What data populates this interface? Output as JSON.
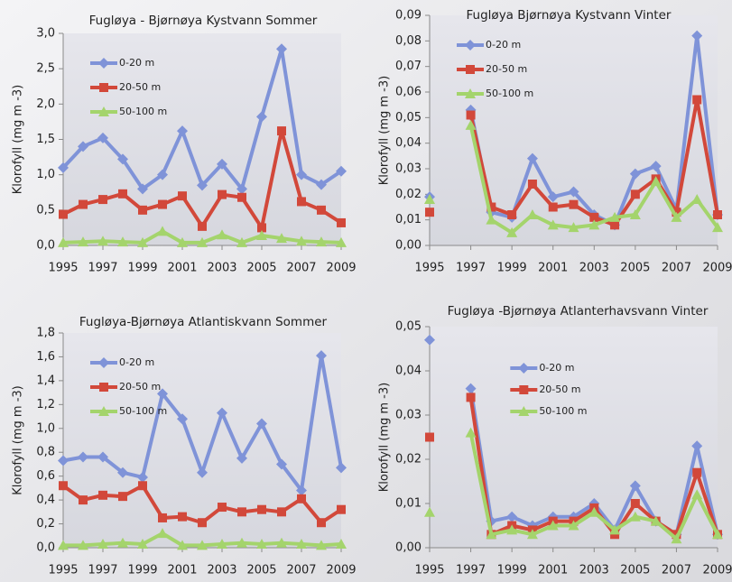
{
  "chart_data": [
    {
      "type": "line",
      "title": "Fugløya - Bjørnøya Kystvann Sommer",
      "y_label": "Klorofyll  (mg m -3)",
      "x": [
        1995,
        1996,
        1997,
        1998,
        1999,
        2000,
        2001,
        2002,
        2003,
        2004,
        2005,
        2006,
        2007,
        2008,
        2009
      ],
      "xlim": [
        1995,
        2009
      ],
      "xticks": [
        1995,
        1997,
        1999,
        2001,
        2003,
        2005,
        2007,
        2009
      ],
      "ylim": [
        0,
        3
      ],
      "yticks": [
        {
          "value": 0,
          "label": "0,0"
        },
        {
          "value": 0.5,
          "label": "0,5"
        },
        {
          "value": 1,
          "label": "1,0"
        },
        {
          "value": 1.5,
          "label": "1,5"
        },
        {
          "value": 2,
          "label": "2,0"
        },
        {
          "value": 2.5,
          "label": "2,5"
        },
        {
          "value": 3,
          "label": "3,0"
        }
      ],
      "legend": "upper left",
      "series": [
        {
          "name": "0-20 m",
          "color": "#7f93d8",
          "marker": "diamond",
          "values": [
            1.1,
            1.4,
            1.52,
            1.22,
            0.8,
            1.0,
            1.62,
            0.85,
            1.15,
            0.8,
            1.82,
            2.78,
            1.0,
            0.86,
            1.05
          ]
        },
        {
          "name": "20-50 m",
          "color": "#d2483a",
          "marker": "square",
          "values": [
            0.44,
            0.58,
            0.65,
            0.73,
            0.5,
            0.58,
            0.7,
            0.27,
            0.72,
            0.68,
            0.25,
            1.62,
            0.62,
            0.5,
            0.32
          ]
        },
        {
          "name": "50-100 m",
          "color": "#a4d46c",
          "marker": "triangle",
          "values": [
            0.04,
            0.05,
            0.06,
            0.05,
            0.04,
            0.2,
            0.04,
            0.04,
            0.15,
            0.04,
            0.14,
            0.1,
            0.06,
            0.05,
            0.04
          ]
        }
      ]
    },
    {
      "type": "line",
      "title": "Fugløya Bjørnøya Kystvann Vinter",
      "y_label": "Klorofyll  (mg m -3)",
      "x": [
        1995,
        1996,
        1997,
        1998,
        1999,
        2000,
        2001,
        2002,
        2003,
        2004,
        2005,
        2006,
        2007,
        2008,
        2009
      ],
      "xlim": [
        1995,
        2009
      ],
      "xticks": [
        1995,
        1997,
        1999,
        2001,
        2003,
        2005,
        2007,
        2009
      ],
      "ylim": [
        0,
        0.09
      ],
      "yticks": [
        {
          "value": 0,
          "label": "0,00"
        },
        {
          "value": 0.01,
          "label": "0,01"
        },
        {
          "value": 0.02,
          "label": "0,02"
        },
        {
          "value": 0.03,
          "label": "0,03"
        },
        {
          "value": 0.04,
          "label": "0,04"
        },
        {
          "value": 0.05,
          "label": "0,05"
        },
        {
          "value": 0.06,
          "label": "0,06"
        },
        {
          "value": 0.07,
          "label": "0,07"
        },
        {
          "value": 0.08,
          "label": "0,08"
        },
        {
          "value": 0.09,
          "label": "0,09"
        }
      ],
      "legend": "upper left",
      "series": [
        {
          "name": "0-20 m",
          "color": "#7f93d8",
          "marker": "diamond",
          "values": [
            0.019,
            null,
            0.053,
            0.013,
            0.011,
            0.034,
            0.019,
            0.021,
            0.012,
            0.008,
            0.028,
            0.031,
            0.014,
            0.082,
            0.012
          ]
        },
        {
          "name": "20-50 m",
          "color": "#d2483a",
          "marker": "square",
          "values": [
            0.013,
            null,
            0.051,
            0.015,
            0.012,
            0.024,
            0.015,
            0.016,
            0.011,
            0.008,
            0.02,
            0.026,
            0.013,
            0.057,
            0.012
          ]
        },
        {
          "name": "50-100 m",
          "color": "#a4d46c",
          "marker": "triangle",
          "values": [
            0.018,
            null,
            0.047,
            0.01,
            0.005,
            0.012,
            0.008,
            0.007,
            0.008,
            0.011,
            0.012,
            0.025,
            0.011,
            0.018,
            0.007
          ]
        }
      ]
    },
    {
      "type": "line",
      "title": "Fugløya-Bjørnøya Atlantiskvann Sommer",
      "y_label": "Klorofyll  (mg m -3)",
      "x": [
        1995,
        1996,
        1997,
        1998,
        1999,
        2000,
        2001,
        2002,
        2003,
        2004,
        2005,
        2006,
        2007,
        2008,
        2009
      ],
      "xlim": [
        1995,
        2009
      ],
      "xticks": [
        1995,
        1997,
        1999,
        2001,
        2003,
        2005,
        2007,
        2009
      ],
      "ylim": [
        0,
        1.8
      ],
      "yticks": [
        {
          "value": 0,
          "label": "0,0"
        },
        {
          "value": 0.2,
          "label": "0,2"
        },
        {
          "value": 0.4,
          "label": "0,4"
        },
        {
          "value": 0.6,
          "label": "0,6"
        },
        {
          "value": 0.8,
          "label": "0,8"
        },
        {
          "value": 1,
          "label": "1,0"
        },
        {
          "value": 1.2,
          "label": "1,2"
        },
        {
          "value": 1.4,
          "label": "1,4"
        },
        {
          "value": 1.6,
          "label": "1,6"
        },
        {
          "value": 1.8,
          "label": "1,8"
        }
      ],
      "legend": "upper left",
      "series": [
        {
          "name": "0-20 m",
          "color": "#7f93d8",
          "marker": "diamond",
          "values": [
            0.73,
            0.76,
            0.76,
            0.63,
            0.59,
            1.29,
            1.08,
            0.63,
            1.13,
            0.75,
            1.04,
            0.7,
            0.48,
            1.61,
            0.67
          ]
        },
        {
          "name": "20-50 m",
          "color": "#d2483a",
          "marker": "square",
          "values": [
            0.52,
            0.4,
            0.44,
            0.43,
            0.52,
            0.25,
            0.26,
            0.21,
            0.34,
            0.3,
            0.32,
            0.3,
            0.41,
            0.21,
            0.32
          ]
        },
        {
          "name": "50-100 m",
          "color": "#a4d46c",
          "marker": "triangle",
          "values": [
            0.02,
            0.02,
            0.03,
            0.04,
            0.03,
            0.12,
            0.02,
            0.02,
            0.03,
            0.04,
            0.03,
            0.04,
            0.03,
            0.02,
            0.03
          ]
        }
      ]
    },
    {
      "type": "line",
      "title": "Fugløya -Bjørnøya Atlanterhavsvann Vinter",
      "y_label": "Klorofyll  (mg m -3)",
      "x": [
        1995,
        1996,
        1997,
        1998,
        1999,
        2000,
        2001,
        2002,
        2003,
        2004,
        2005,
        2006,
        2007,
        2008,
        2009
      ],
      "xlim": [
        1995,
        2009
      ],
      "xticks": [
        1995,
        1997,
        1999,
        2001,
        2003,
        2005,
        2007,
        2009
      ],
      "ylim": [
        0,
        0.05
      ],
      "yticks": [
        {
          "value": 0,
          "label": "0,00"
        },
        {
          "value": 0.01,
          "label": "0,01"
        },
        {
          "value": 0.02,
          "label": "0,02"
        },
        {
          "value": 0.03,
          "label": "0,03"
        },
        {
          "value": 0.04,
          "label": "0,04"
        },
        {
          "value": 0.05,
          "label": "0,05"
        }
      ],
      "legend": "upper center",
      "series": [
        {
          "name": "0-20 m",
          "color": "#7f93d8",
          "marker": "diamond",
          "values": [
            0.047,
            null,
            0.036,
            0.006,
            0.007,
            0.005,
            0.007,
            0.007,
            0.01,
            0.004,
            0.014,
            0.006,
            0.003,
            0.023,
            0.003
          ]
        },
        {
          "name": "20-50 m",
          "color": "#d2483a",
          "marker": "square",
          "values": [
            0.025,
            null,
            0.034,
            0.003,
            0.005,
            0.004,
            0.006,
            0.006,
            0.009,
            0.003,
            0.01,
            0.006,
            0.003,
            0.017,
            0.003
          ]
        },
        {
          "name": "50-100 m",
          "color": "#a4d46c",
          "marker": "triangle",
          "values": [
            0.008,
            null,
            0.026,
            0.003,
            0.004,
            0.003,
            0.005,
            0.005,
            0.008,
            0.004,
            0.007,
            0.006,
            0.002,
            0.012,
            0.003
          ]
        }
      ]
    }
  ]
}
